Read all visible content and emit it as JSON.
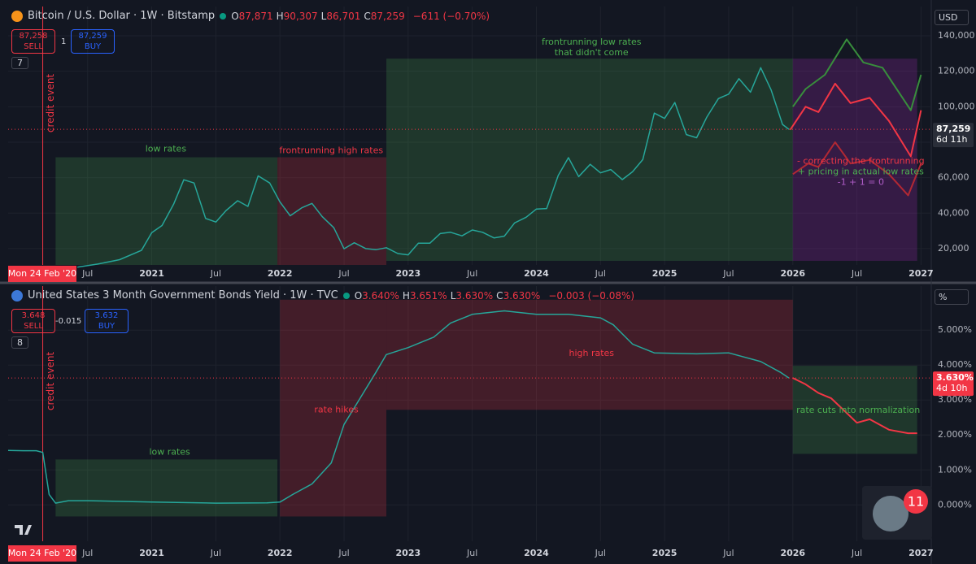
{
  "notifications": "11",
  "chart_data": [
    {
      "type": "line",
      "title": "Bitcoin / U.S. Dollar · 1W · Bitstamp",
      "ohlc": [
        {
          "label": "O",
          "value": "87,871"
        },
        {
          "label": "H",
          "value": "90,307"
        },
        {
          "label": "L",
          "value": "86,701"
        },
        {
          "label": "C",
          "value": "87,259"
        }
      ],
      "change": "−611 (−0.70%)",
      "sell": {
        "value": "87,258",
        "label": "SELL"
      },
      "buy": {
        "value": "87,259",
        "label": "BUY"
      },
      "spread": "1",
      "indicators": "7",
      "unit": "USD",
      "last": {
        "value": 87259,
        "label": "87,259",
        "countdown": "6d 11h"
      },
      "date_label": "Mon 24 Feb '20",
      "event": {
        "label": "credit event",
        "x": 2020.15
      },
      "xlim": [
        2019.88,
        2027.08
      ],
      "xticks": [
        {
          "value": 2020.5,
          "label": "Jul"
        },
        2021,
        {
          "value": 2021.5,
          "label": "Jul"
        },
        2022,
        {
          "value": 2022.5,
          "label": "Jul"
        },
        2023,
        {
          "value": 2023.5,
          "label": "Jul"
        },
        2024,
        {
          "value": 2024.5,
          "label": "Jul"
        },
        2025,
        {
          "value": 2025.5,
          "label": "Jul"
        },
        2026,
        {
          "value": 2026.5,
          "label": "Jul"
        },
        2027
      ],
      "ylim": [
        10800,
        156500
      ],
      "yticks": [
        {
          "value": 20000,
          "label": "20,000"
        },
        {
          "value": 40000,
          "label": "40,000"
        },
        {
          "value": 60000,
          "label": "60,000"
        },
        {
          "value": 80000,
          "label": "80,000"
        },
        {
          "value": 100000,
          "label": "100,000"
        },
        {
          "value": 120000,
          "label": "120,000"
        },
        {
          "value": 140000,
          "label": "140,000"
        }
      ],
      "grid": true,
      "zones": [
        {
          "x": [
            2020.25,
            2021.98
          ],
          "y": [
            10800,
            71500
          ],
          "fill": "rgba(76,175,80,0.22)",
          "at": [
            2021.11,
            76000
          ],
          "labels": [
            {
              "text": "low rates",
              "color": "#4caf50"
            }
          ]
        },
        {
          "x": [
            2021.98,
            2022.83
          ],
          "y": [
            10800,
            71500
          ],
          "fill": "rgba(242,54,69,0.22)",
          "at": [
            2022.4,
            75200
          ],
          "labels": [
            {
              "text": "frontrunning high rates",
              "color": "#f23645"
            }
          ]
        },
        {
          "x": [
            2022.83,
            2026.0
          ],
          "y": [
            13100,
            127100
          ],
          "fill": "rgba(76,175,80,0.22)",
          "at": [
            2024.43,
            136300
          ],
          "labels": [
            {
              "text": "frontrunning low rates",
              "color": "#4caf50"
            },
            {
              "text": "that didn't come",
              "color": "#4caf50"
            }
          ]
        },
        {
          "x": [
            2026.0,
            2026.97
          ],
          "y": [
            13100,
            127100
          ],
          "fill": "rgba(156,39,176,0.25)",
          "at": [
            2026.53,
            69200
          ],
          "labels": [
            {
              "text": "- correcting the frontrunning",
              "color": "#f23645"
            },
            {
              "text": "+ pricing in actual low rates",
              "color": "#4caf50"
            },
            {
              "text": "-1 + 1 = 0",
              "color": "#b05dc8"
            }
          ]
        }
      ],
      "series": [
        {
          "color": "#26a69a",
          "width": 1.5,
          "x": [
            2020.42,
            2020.58,
            2020.75,
            2020.92,
            2021.0,
            2021.08,
            2021.17,
            2021.25,
            2021.33,
            2021.42,
            2021.5,
            2021.58,
            2021.67,
            2021.75,
            2021.83,
            2021.92,
            2022.0,
            2022.08,
            2022.17,
            2022.25,
            2022.33,
            2022.42,
            2022.5,
            2022.58,
            2022.67,
            2022.75,
            2022.83,
            2022.92,
            2023.0,
            2023.08,
            2023.17,
            2023.25,
            2023.33,
            2023.42,
            2023.5,
            2023.58,
            2023.67,
            2023.75,
            2023.83,
            2023.92,
            2024.0,
            2024.08,
            2024.17,
            2024.25,
            2024.33,
            2024.42,
            2024.5,
            2024.58,
            2024.67,
            2024.75,
            2024.83,
            2024.92,
            2025.0,
            2025.08,
            2025.17,
            2025.25,
            2025.33,
            2025.42,
            2025.5,
            2025.58,
            2025.67,
            2025.75,
            2025.83,
            2025.92,
            2025.97
          ],
          "values": [
            9500,
            11300,
            13800,
            19000,
            29000,
            33000,
            45000,
            58800,
            57000,
            37000,
            35000,
            41500,
            47000,
            43800,
            61000,
            57000,
            46300,
            38500,
            43000,
            45500,
            38000,
            31800,
            19900,
            23300,
            20000,
            19400,
            20500,
            17200,
            16500,
            23100,
            23100,
            28500,
            29200,
            27200,
            30500,
            29200,
            26000,
            27000,
            34500,
            37700,
            42300,
            42600,
            61200,
            71300,
            60600,
            67500,
            62700,
            64600,
            58900,
            63300,
            70200,
            96400,
            93400,
            102400,
            84300,
            82500,
            94200,
            104600,
            107100,
            115800,
            108200,
            122000,
            109600,
            90000,
            87259
          ]
        },
        {
          "color": "#388e3c",
          "width": 2,
          "x": [
            2026.0,
            2026.1,
            2026.25,
            2026.42,
            2026.55,
            2026.7,
            2026.92,
            2027.0
          ],
          "values": [
            100000,
            110000,
            118000,
            138000,
            125000,
            122000,
            98000,
            118000
          ]
        },
        {
          "color": "#f23645",
          "width": 2,
          "x": [
            2025.98,
            2026.1,
            2026.2,
            2026.33,
            2026.45,
            2026.6,
            2026.75,
            2026.92,
            2027.0
          ],
          "values": [
            87000,
            100000,
            97000,
            113000,
            102000,
            105000,
            92000,
            72000,
            98000
          ]
        },
        {
          "color": "#b22833",
          "width": 2,
          "x": [
            2026.0,
            2026.12,
            2026.2,
            2026.33,
            2026.45,
            2026.6,
            2026.75,
            2026.9,
            2027.0
          ],
          "values": [
            62000,
            68000,
            66000,
            80000,
            68000,
            70000,
            62000,
            50000,
            68000
          ]
        }
      ]
    },
    {
      "type": "line",
      "title": "United States 3 Month Government Bonds Yield · 1W · TVC",
      "ohlc": [
        {
          "label": "O",
          "value": "3.640%"
        },
        {
          "label": "H",
          "value": "3.651%"
        },
        {
          "label": "L",
          "value": "3.630%"
        },
        {
          "label": "C",
          "value": "3.630%"
        }
      ],
      "change": "−0.003 (−0.08%)",
      "sell": {
        "value": "3.648",
        "label": "SELL"
      },
      "buy": {
        "value": "3.632",
        "label": "BUY"
      },
      "spread": "-0.015",
      "indicators": "8",
      "unit": "%",
      "last": {
        "value": 3.63,
        "label": "3.630%",
        "countdown": "4d 10h"
      },
      "date_label": "Mon 24 Feb '20",
      "event": {
        "label": "credit event",
        "x": 2020.15
      },
      "xlim": [
        2019.88,
        2027.08
      ],
      "xticks": [
        {
          "value": 2020.5,
          "label": "Jul"
        },
        2021,
        {
          "value": 2021.5,
          "label": "Jul"
        },
        2022,
        {
          "value": 2022.5,
          "label": "Jul"
        },
        2023,
        {
          "value": 2023.5,
          "label": "Jul"
        },
        2024,
        {
          "value": 2024.5,
          "label": "Jul"
        },
        2025,
        {
          "value": 2025.5,
          "label": "Jul"
        },
        2026,
        {
          "value": 2026.5,
          "label": "Jul"
        },
        2027
      ],
      "ylim": [
        -1.04,
        6.26
      ],
      "yticks": [
        {
          "value": 0,
          "label": "0.000%"
        },
        {
          "value": 1,
          "label": "1.000%"
        },
        {
          "value": 2,
          "label": "2.000%"
        },
        {
          "value": 3,
          "label": "3.000%"
        },
        {
          "value": 4,
          "label": "4.000%"
        },
        {
          "value": 5,
          "label": "5.000%"
        }
      ],
      "grid": true,
      "zones": [
        {
          "x": [
            2020.25,
            2021.98
          ],
          "y": [
            -0.33,
            1.3
          ],
          "fill": "rgba(76,175,80,0.22)",
          "at": [
            2021.14,
            1.5
          ],
          "labels": [
            {
              "text": "low rates",
              "color": "#4caf50"
            }
          ]
        },
        {
          "x": [
            2022.0,
            2022.83
          ],
          "y": [
            -0.33,
            5.87
          ],
          "fill": "rgba(242,54,69,0.22)",
          "at": [
            2022.44,
            2.72
          ],
          "labels": [
            {
              "text": "rate hikes",
              "color": "#f23645"
            }
          ]
        },
        {
          "x": [
            2022.83,
            2026.0
          ],
          "y": [
            2.72,
            5.87
          ],
          "fill": "rgba(242,54,69,0.22)",
          "at": [
            2024.43,
            4.33
          ],
          "labels": [
            {
              "text": "high rates",
              "color": "#f23645"
            }
          ]
        },
        {
          "x": [
            2026.0,
            2026.97
          ],
          "y": [
            1.46,
            3.98
          ],
          "fill": "rgba(76,175,80,0.22)",
          "at": [
            2026.51,
            2.7
          ],
          "labels": [
            {
              "text": "rate cuts into normalization",
              "color": "#4caf50"
            }
          ]
        }
      ],
      "series": [
        {
          "color": "#26a69a",
          "width": 1.5,
          "x": [
            2019.88,
            2020.0,
            2020.1,
            2020.15,
            2020.2,
            2020.25,
            2020.35,
            2020.5,
            2021.0,
            2021.5,
            2021.9,
            2022.0,
            2022.1,
            2022.25,
            2022.4,
            2022.5,
            2022.6,
            2022.75,
            2022.83,
            2023.0,
            2023.2,
            2023.33,
            2023.5,
            2023.75,
            2024.0,
            2024.25,
            2024.5,
            2024.6,
            2024.75,
            2024.92,
            2025.25,
            2025.5,
            2025.75,
            2025.9,
            2025.97
          ],
          "values": [
            1.56,
            1.55,
            1.55,
            1.5,
            0.3,
            0.05,
            0.12,
            0.12,
            0.08,
            0.05,
            0.06,
            0.08,
            0.3,
            0.6,
            1.2,
            2.3,
            2.9,
            3.8,
            4.3,
            4.5,
            4.8,
            5.2,
            5.45,
            5.55,
            5.45,
            5.45,
            5.35,
            5.15,
            4.6,
            4.35,
            4.32,
            4.35,
            4.1,
            3.8,
            3.63
          ]
        },
        {
          "color": "#f23645",
          "width": 2,
          "x": [
            2026.0,
            2026.1,
            2026.2,
            2026.3,
            2026.4,
            2026.5,
            2026.6,
            2026.75,
            2026.9,
            2026.97
          ],
          "values": [
            3.63,
            3.45,
            3.2,
            3.05,
            2.7,
            2.35,
            2.45,
            2.15,
            2.05,
            2.05
          ]
        }
      ]
    }
  ]
}
